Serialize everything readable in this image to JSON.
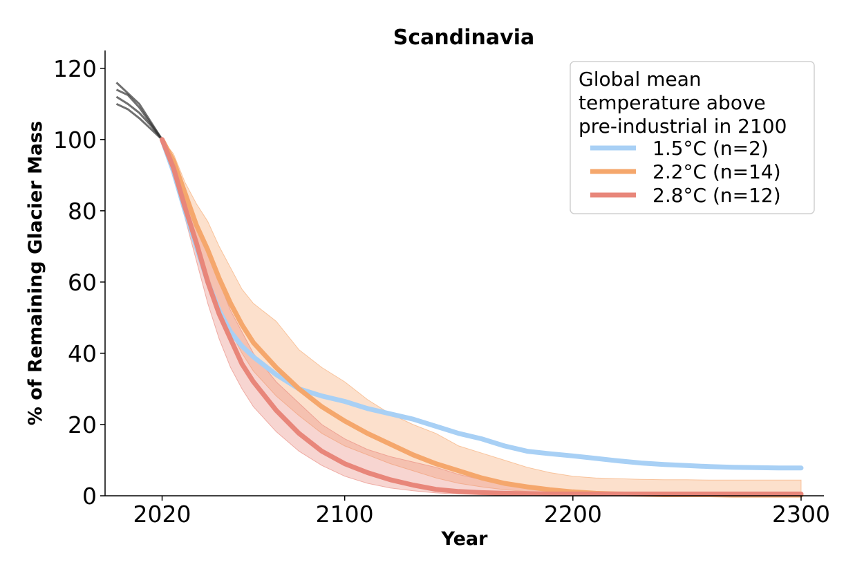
{
  "chart_data": {
    "type": "line",
    "title": "Scandinavia",
    "xlabel": "Year",
    "ylabel": "% of Remaining Glacier Mass",
    "xlim": [
      1995,
      2310
    ],
    "ylim": [
      0,
      125
    ],
    "xticks": [
      2020,
      2100,
      2200,
      2300
    ],
    "yticks": [
      0,
      20,
      40,
      60,
      80,
      100,
      120
    ],
    "grid": false,
    "legend": {
      "title_lines": [
        "Global mean",
        "temperature above",
        "pre-industrial in 2100"
      ],
      "placement": "top-right"
    },
    "historical": {
      "color": "#333333",
      "runs": [
        {
          "x": [
            2000,
            2005,
            2010,
            2015,
            2020
          ],
          "y": [
            116,
            113,
            110,
            105,
            100
          ]
        },
        {
          "x": [
            2000,
            2005,
            2010,
            2015,
            2020
          ],
          "y": [
            114,
            112.5,
            109,
            104.5,
            100
          ]
        },
        {
          "x": [
            2000,
            2005,
            2010,
            2015,
            2020
          ],
          "y": [
            112,
            110,
            107.5,
            104,
            100
          ]
        },
        {
          "x": [
            2000,
            2005,
            2010,
            2015,
            2020
          ],
          "y": [
            110,
            108.5,
            106,
            103,
            100
          ]
        }
      ]
    },
    "series": [
      {
        "name": "1.5°C (n=2)",
        "color": "#a8d0f5",
        "x": [
          2020,
          2025,
          2030,
          2035,
          2040,
          2045,
          2050,
          2055,
          2060,
          2070,
          2080,
          2090,
          2100,
          2110,
          2120,
          2130,
          2140,
          2150,
          2160,
          2170,
          2180,
          2190,
          2200,
          2210,
          2220,
          2230,
          2240,
          2250,
          2260,
          2270,
          2280,
          2290,
          2300
        ],
        "y": [
          100,
          91,
          80,
          70,
          60,
          52,
          46,
          42,
          39,
          34,
          30,
          28,
          26.5,
          24.5,
          23,
          21.5,
          19.5,
          17.5,
          16,
          14,
          12.5,
          11.8,
          11.2,
          10.5,
          9.8,
          9.2,
          8.8,
          8.5,
          8.2,
          8,
          7.9,
          7.8,
          7.8
        ],
        "lower": [
          100,
          90.5,
          79.5,
          69.5,
          59.5,
          51.5,
          45.5,
          41.5,
          38.5,
          33.5,
          29.5,
          27.5,
          26,
          24,
          22.5,
          21,
          19,
          17,
          15.5,
          13.5,
          12,
          11.3,
          10.7,
          10,
          9.3,
          8.7,
          8.3,
          8,
          7.7,
          7.5,
          7.4,
          7.3,
          7.3
        ],
        "upper": [
          100,
          91.5,
          80.5,
          70.5,
          60.5,
          52.5,
          46.5,
          42.5,
          39.5,
          34.5,
          30.5,
          28.5,
          27,
          25,
          23.5,
          22,
          20,
          18,
          16.5,
          14.5,
          13,
          12.3,
          11.7,
          11,
          10.3,
          9.7,
          9.3,
          9,
          8.7,
          8.5,
          8.4,
          8.3,
          8.3
        ]
      },
      {
        "name": "2.2°C (n=14)",
        "color": "#f5a76c",
        "x": [
          2020,
          2025,
          2030,
          2035,
          2040,
          2045,
          2050,
          2055,
          2060,
          2070,
          2080,
          2090,
          2100,
          2110,
          2120,
          2130,
          2140,
          2150,
          2160,
          2170,
          2180,
          2190,
          2200,
          2210,
          2220,
          2230,
          2240,
          2250,
          2260,
          2270,
          2280,
          2290,
          2300
        ],
        "y": [
          100,
          94,
          85,
          76,
          69,
          61,
          54,
          48,
          43,
          36,
          30,
          25,
          21,
          17.5,
          14.5,
          11.5,
          9,
          7,
          5,
          3.5,
          2.5,
          1.7,
          1.1,
          0.7,
          0.5,
          0.4,
          0.3,
          0.3,
          0.3,
          0.2,
          0.2,
          0.2,
          0.2
        ],
        "lower": [
          100,
          93,
          83,
          72,
          62,
          53,
          46,
          40,
          35,
          28,
          22.5,
          17.5,
          14,
          11.5,
          9,
          7,
          5,
          3.5,
          2.5,
          1.7,
          1.2,
          0.8,
          0.5,
          0.3,
          0.2,
          0.1,
          0.1,
          0.1,
          0.1,
          0.1,
          0.1,
          0.1,
          0.1
        ],
        "upper": [
          100,
          96,
          88,
          82,
          77,
          70,
          64,
          58,
          54,
          49,
          41,
          36,
          32,
          27,
          23,
          20,
          17.5,
          14,
          12,
          10,
          8,
          6.5,
          5.5,
          5,
          4.8,
          4.6,
          4.5,
          4.5,
          4.4,
          4.4,
          4.4,
          4.4,
          4.4
        ]
      },
      {
        "name": "2.8°C (n=12)",
        "color": "#e8867a",
        "x": [
          2020,
          2025,
          2030,
          2035,
          2040,
          2045,
          2050,
          2055,
          2060,
          2070,
          2080,
          2090,
          2100,
          2110,
          2120,
          2130,
          2140,
          2150,
          2160,
          2170,
          2180,
          2190,
          2200,
          2210,
          2220,
          2230,
          2240,
          2250,
          2260,
          2270,
          2280,
          2290,
          2300
        ],
        "y": [
          100,
          92,
          81,
          71,
          60,
          51,
          44,
          37,
          32,
          24,
          17.5,
          12.5,
          9,
          6.5,
          4.5,
          3,
          1.8,
          1.2,
          0.9,
          0.7,
          0.6,
          0.5,
          0.5,
          0.5,
          0.5,
          0.5,
          0.5,
          0.5,
          0.5,
          0.5,
          0.5,
          0.5,
          0.5
        ],
        "lower": [
          100,
          91,
          78,
          66,
          54,
          44,
          36,
          30,
          25,
          18,
          12.5,
          8.5,
          5.5,
          3.5,
          2.2,
          1.4,
          0.8,
          0.5,
          0.3,
          0.2,
          0.1,
          0.1,
          0.1,
          0.1,
          0.1,
          0.1,
          0.1,
          0.1,
          0.1,
          0.1,
          0.1,
          0.1,
          0.1
        ],
        "upper": [
          100,
          94,
          86,
          77,
          68,
          60,
          52,
          46,
          40,
          32,
          26,
          20,
          16,
          13,
          11,
          9.5,
          8,
          6,
          4.5,
          3.2,
          2.2,
          1.5,
          1,
          0.8,
          0.7,
          0.6,
          0.6,
          0.6,
          0.6,
          0.6,
          0.6,
          0.6,
          0.6
        ]
      }
    ]
  }
}
